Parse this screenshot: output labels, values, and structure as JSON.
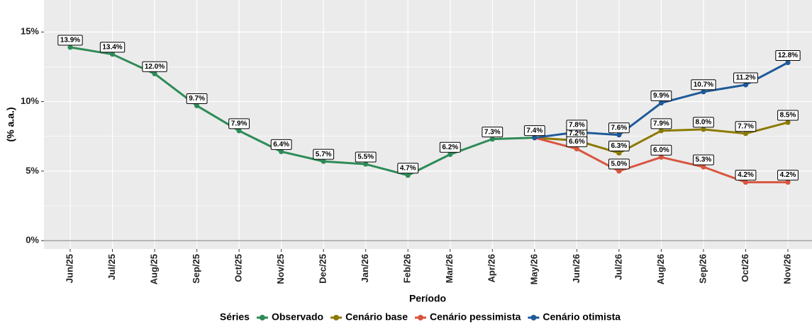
{
  "chart_data": {
    "type": "line",
    "x_label": "Período",
    "y_label": "(% a.a.)",
    "legend_title": "Séries",
    "categories": [
      "Jun/25",
      "Jul/25",
      "Aug/25",
      "Sep/25",
      "Oct/25",
      "Nov/25",
      "Dec/25",
      "Jan/26",
      "Feb/26",
      "Mar/26",
      "Apr/26",
      "May/26",
      "Jun/26",
      "Jul/26",
      "Aug/26",
      "Sep/26",
      "Oct/26",
      "Nov/26"
    ],
    "series": [
      {
        "name": "Observado",
        "color": "#2e8b57",
        "values": [
          13.9,
          13.4,
          12.0,
          9.7,
          7.9,
          6.4,
          5.7,
          5.5,
          4.7,
          6.2,
          7.3,
          7.4,
          null,
          null,
          null,
          null,
          null,
          null
        ],
        "value_labels": [
          "13.9%",
          "13.4%",
          "12.0%",
          "9.7%",
          "7.9%",
          "6.4%",
          "5.7%",
          "5.5%",
          "4.7%",
          "6.2%",
          "7.3%",
          "7.4%",
          null,
          null,
          null,
          null,
          null,
          null
        ]
      },
      {
        "name": "Cenário base",
        "color": "#8b7a00",
        "values": [
          null,
          null,
          null,
          null,
          null,
          null,
          null,
          null,
          null,
          null,
          null,
          7.4,
          7.2,
          6.3,
          7.9,
          8.0,
          7.7,
          8.5
        ],
        "value_labels": [
          null,
          null,
          null,
          null,
          null,
          null,
          null,
          null,
          null,
          null,
          null,
          null,
          "7.2%",
          "6.3%",
          "7.9%",
          "8.0%",
          "7.7%",
          "8.5%"
        ]
      },
      {
        "name": "Cenário pessimista",
        "color": "#d9553f",
        "values": [
          null,
          null,
          null,
          null,
          null,
          null,
          null,
          null,
          null,
          null,
          null,
          7.4,
          6.6,
          5.0,
          6.0,
          5.3,
          4.2,
          4.2
        ],
        "value_labels": [
          null,
          null,
          null,
          null,
          null,
          null,
          null,
          null,
          null,
          null,
          null,
          null,
          "6.6%",
          "5.0%",
          "6.0%",
          "5.3%",
          "4.2%",
          "4.2%"
        ]
      },
      {
        "name": "Cenário otimista",
        "color": "#1f5a99",
        "values": [
          null,
          null,
          null,
          null,
          null,
          null,
          null,
          null,
          null,
          null,
          null,
          7.4,
          7.8,
          7.6,
          9.9,
          10.7,
          11.2,
          12.8
        ],
        "value_labels": [
          null,
          null,
          null,
          null,
          null,
          null,
          null,
          null,
          null,
          null,
          null,
          null,
          "7.8%",
          "7.6%",
          "9.9%",
          "10.7%",
          "11.2%",
          "12.8%"
        ]
      }
    ],
    "ylim": [
      -0.6,
      17.3
    ],
    "yticks": [
      {
        "value": 0,
        "label": "0%"
      },
      {
        "value": 5,
        "label": "5%"
      },
      {
        "value": 10,
        "label": "10%"
      },
      {
        "value": 15,
        "label": "15%"
      }
    ],
    "yminorticks": [
      2.5,
      7.5,
      12.5
    ],
    "hline": 0,
    "grid": true,
    "legend": "bottom"
  }
}
